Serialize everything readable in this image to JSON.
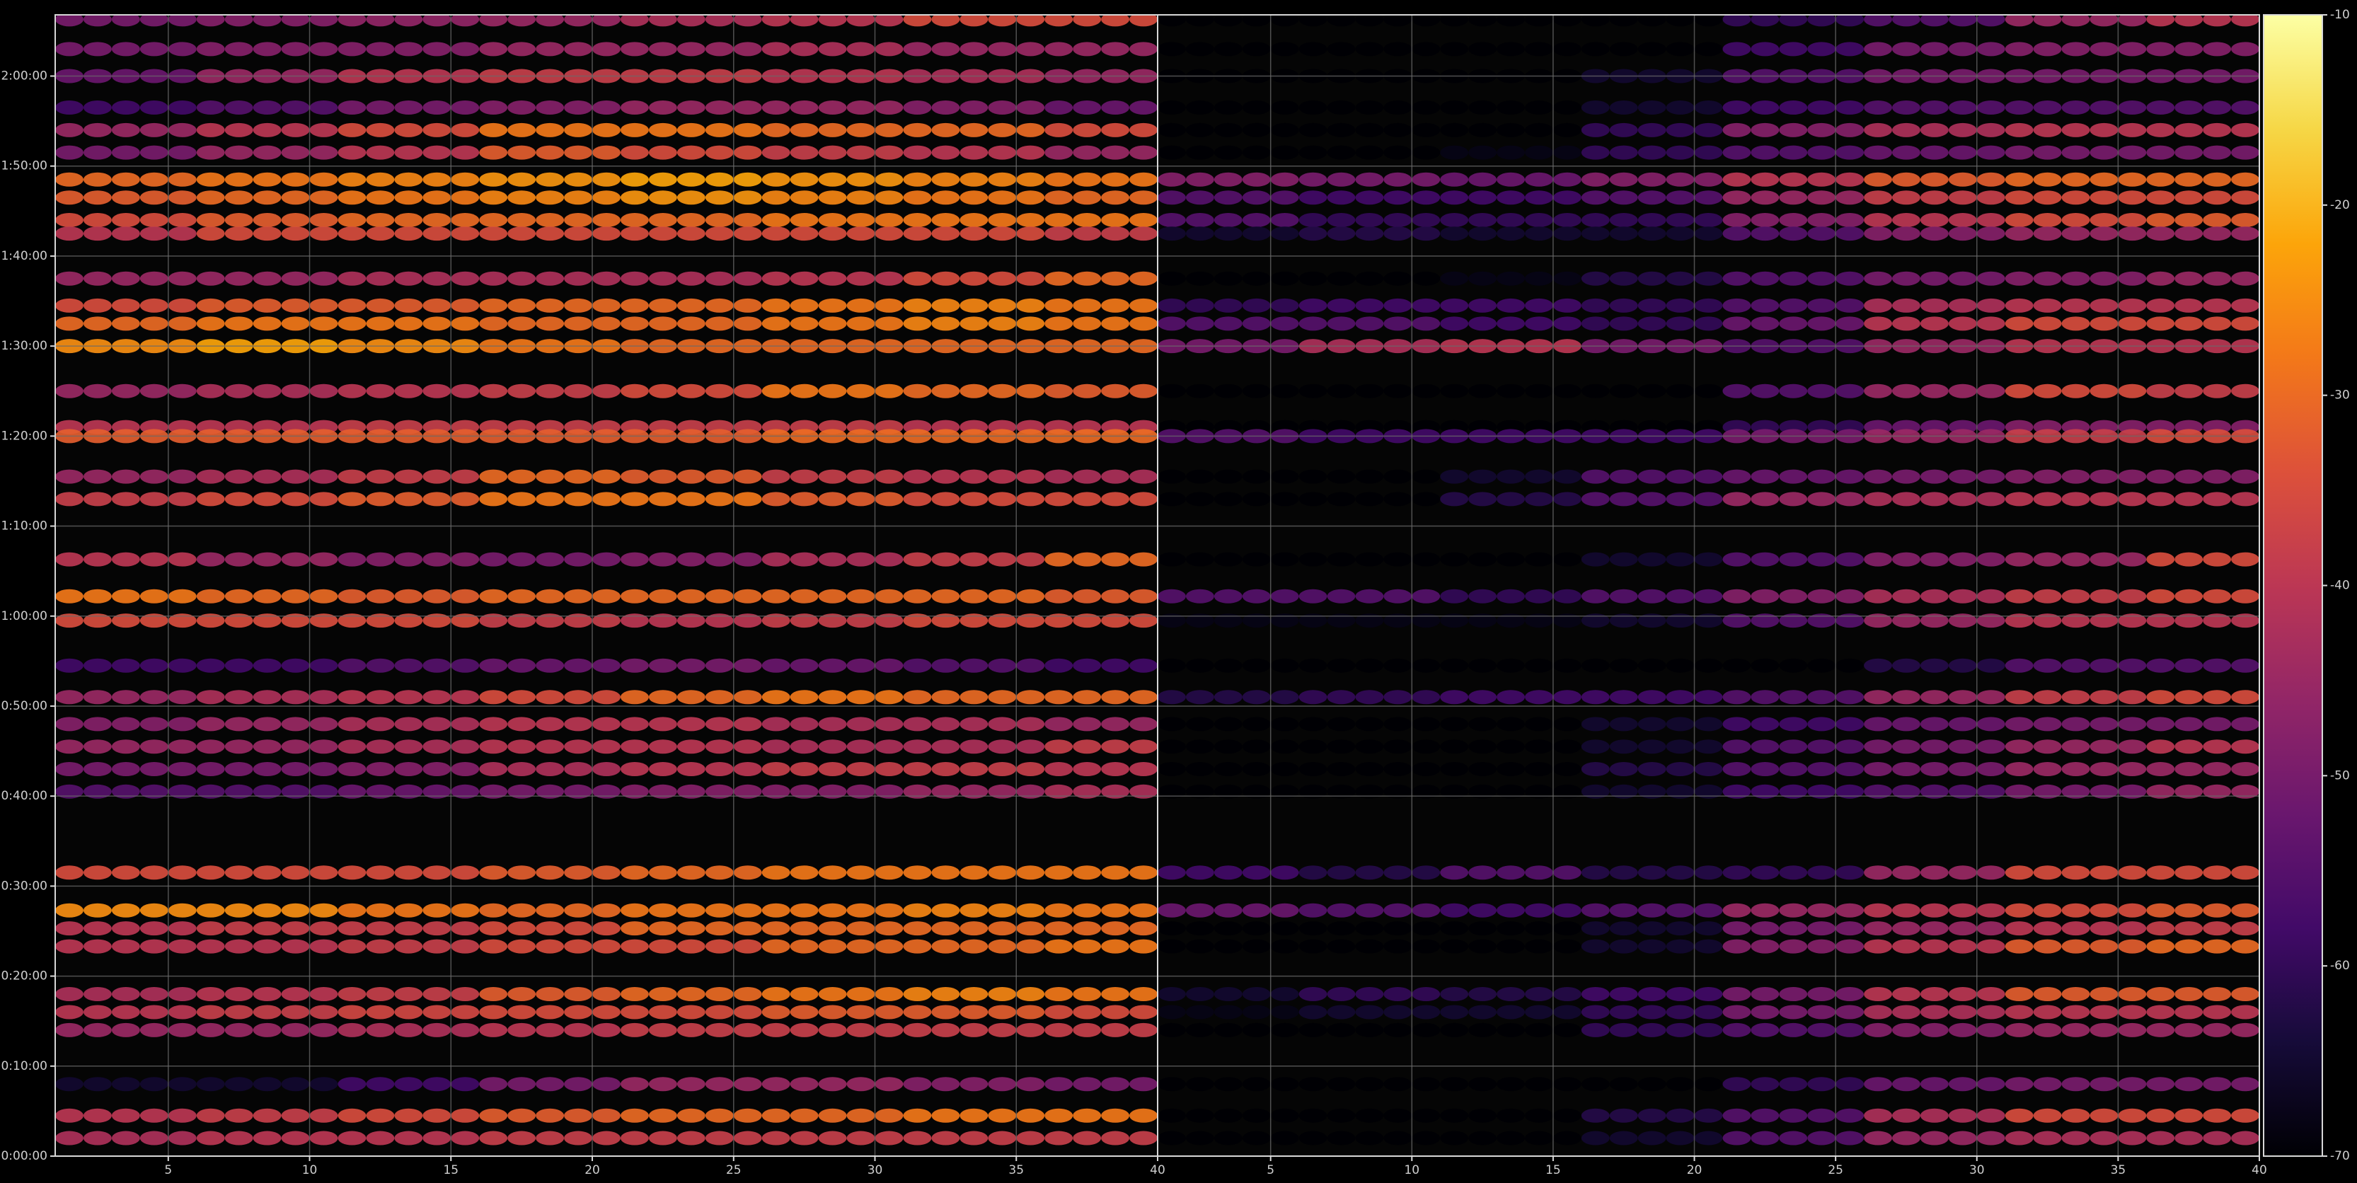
{
  "chart_data": [
    {
      "type": "heatmap",
      "xlim": [
        1,
        40
      ],
      "xticks": [
        5,
        10,
        15,
        20,
        25,
        30,
        35,
        40
      ],
      "ylim": [
        0,
        126.8
      ],
      "yticks": [
        {
          "value": 0,
          "label": "0:00:00"
        },
        {
          "value": 10,
          "label": "0:10:00"
        },
        {
          "value": 20,
          "label": "0:20:00"
        },
        {
          "value": 30,
          "label": "0:30:00"
        },
        {
          "value": 40,
          "label": "0:40:00"
        },
        {
          "value": 50,
          "label": "0:50:00"
        },
        {
          "value": 60,
          "label": "1:00:00"
        },
        {
          "value": 70,
          "label": "1:10:00"
        },
        {
          "value": 80,
          "label": "1:20:00"
        },
        {
          "value": 90,
          "label": "1:30:00"
        },
        {
          "value": 100,
          "label": "1:40:00"
        },
        {
          "value": 110,
          "label": "1:50:00"
        },
        {
          "value": 120,
          "label": "2:00:00"
        }
      ],
      "grid": true,
      "x_bins": [
        1,
        6,
        11,
        16,
        21,
        26,
        31,
        36,
        40
      ],
      "rows": [
        {
          "y": 126.3,
          "values": [
            -50,
            -48,
            -46,
            -45,
            -42,
            -40,
            -35,
            -35
          ]
        },
        {
          "y": 123,
          "values": [
            -50,
            -48,
            -48,
            -45,
            -45,
            -42,
            -45,
            -45
          ]
        },
        {
          "y": 120,
          "values": [
            -52,
            -45,
            -40,
            -38,
            -38,
            -40,
            -42,
            -45
          ]
        },
        {
          "y": 116.5,
          "values": [
            -58,
            -55,
            -50,
            -48,
            -45,
            -45,
            -48,
            -52
          ]
        },
        {
          "y": 114,
          "values": [
            -45,
            -40,
            -35,
            -28,
            -28,
            -30,
            -30,
            -35
          ]
        },
        {
          "y": 111.5,
          "values": [
            -50,
            -45,
            -40,
            -32,
            -35,
            -38,
            -40,
            -45
          ]
        },
        {
          "y": 108.5,
          "values": [
            -30,
            -28,
            -26,
            -24,
            -22,
            -24,
            -26,
            -28
          ]
        },
        {
          "y": 106.5,
          "values": [
            -32,
            -30,
            -28,
            -26,
            -24,
            -26,
            -28,
            -30
          ]
        },
        {
          "y": 104,
          "values": [
            -35,
            -32,
            -30,
            -30,
            -30,
            -28,
            -28,
            -28
          ]
        },
        {
          "y": 102.5,
          "values": [
            -40,
            -35,
            -35,
            -35,
            -35,
            -35,
            -35,
            -38
          ]
        },
        {
          "y": 97.5,
          "values": [
            -45,
            -45,
            -42,
            -42,
            -42,
            -40,
            -35,
            -30
          ]
        },
        {
          "y": 94.5,
          "values": [
            -35,
            -32,
            -32,
            -30,
            -30,
            -28,
            -26,
            -28
          ]
        },
        {
          "y": 92.5,
          "values": [
            -30,
            -28,
            -28,
            -30,
            -30,
            -28,
            -26,
            -28
          ]
        },
        {
          "y": 90,
          "values": [
            -25,
            -22,
            -25,
            -28,
            -30,
            -30,
            -30,
            -30
          ]
        },
        {
          "y": 85,
          "values": [
            -45,
            -42,
            -40,
            -38,
            -35,
            -28,
            -30,
            -32
          ]
        },
        {
          "y": 81,
          "values": [
            -40,
            -40,
            -38,
            -38,
            -38,
            -38,
            -40,
            -40
          ]
        },
        {
          "y": 80,
          "values": [
            -32,
            -32,
            -32,
            -32,
            -32,
            -30,
            -30,
            -30
          ]
        },
        {
          "y": 75.5,
          "values": [
            -45,
            -42,
            -38,
            -30,
            -32,
            -38,
            -40,
            -42
          ]
        },
        {
          "y": 73,
          "values": [
            -38,
            -35,
            -32,
            -28,
            -28,
            -32,
            -35,
            -35
          ]
        },
        {
          "y": 66.3,
          "values": [
            -40,
            -45,
            -48,
            -50,
            -48,
            -42,
            -38,
            -30
          ]
        },
        {
          "y": 62.2,
          "values": [
            -28,
            -30,
            -32,
            -30,
            -30,
            -30,
            -30,
            -32
          ]
        },
        {
          "y": 59.5,
          "values": [
            -35,
            -35,
            -35,
            -38,
            -40,
            -38,
            -35,
            -35
          ]
        },
        {
          "y": 54.5,
          "values": [
            -58,
            -58,
            -55,
            -52,
            -50,
            -52,
            -55,
            -58
          ]
        },
        {
          "y": 51,
          "values": [
            -45,
            -42,
            -40,
            -35,
            -30,
            -28,
            -30,
            -30
          ]
        },
        {
          "y": 48,
          "values": [
            -48,
            -45,
            -42,
            -40,
            -40,
            -42,
            -42,
            -45
          ]
        },
        {
          "y": 45.5,
          "values": [
            -45,
            -45,
            -42,
            -40,
            -40,
            -42,
            -42,
            -38
          ]
        },
        {
          "y": 43,
          "values": [
            -50,
            -50,
            -48,
            -42,
            -40,
            -38,
            -38,
            -40
          ]
        },
        {
          "y": 40.5,
          "values": [
            -55,
            -55,
            -52,
            -50,
            -48,
            -48,
            -45,
            -42
          ]
        },
        {
          "y": 31.5,
          "values": [
            -35,
            -35,
            -35,
            -32,
            -30,
            -28,
            -28,
            -28
          ]
        },
        {
          "y": 27.3,
          "values": [
            -25,
            -25,
            -28,
            -30,
            -28,
            -28,
            -26,
            -28
          ]
        },
        {
          "y": 25.3,
          "values": [
            -40,
            -38,
            -38,
            -35,
            -30,
            -30,
            -30,
            -30
          ]
        },
        {
          "y": 23.3,
          "values": [
            -40,
            -40,
            -38,
            -35,
            -35,
            -30,
            -30,
            -28
          ]
        },
        {
          "y": 18,
          "values": [
            -42,
            -40,
            -38,
            -32,
            -30,
            -28,
            -26,
            -28
          ]
        },
        {
          "y": 16,
          "values": [
            -40,
            -38,
            -36,
            -35,
            -35,
            -32,
            -32,
            -35
          ]
        },
        {
          "y": 14,
          "values": [
            -45,
            -45,
            -42,
            -40,
            -38,
            -38,
            -38,
            -38
          ]
        },
        {
          "y": 8,
          "values": [
            -65,
            -65,
            -58,
            -50,
            -45,
            -45,
            -48,
            -50
          ]
        },
        {
          "y": 4.5,
          "values": [
            -40,
            -38,
            -35,
            -32,
            -30,
            -30,
            -28,
            -28
          ]
        },
        {
          "y": 2,
          "values": [
            -42,
            -40,
            -40,
            -38,
            -38,
            -38,
            -38,
            -38
          ]
        }
      ]
    },
    {
      "type": "heatmap",
      "xlim": [
        1,
        40
      ],
      "xticks": [
        5,
        10,
        15,
        20,
        25,
        30,
        35,
        40
      ],
      "x_bins": [
        1,
        6,
        11,
        16,
        21,
        26,
        31,
        36,
        40
      ],
      "rows": [
        {
          "y": 126.3,
          "values": [
            -70,
            -70,
            -70,
            -70,
            -60,
            -55,
            -45,
            -40
          ]
        },
        {
          "y": 123,
          "values": [
            -70,
            -70,
            -70,
            -70,
            -58,
            -50,
            -48,
            -48
          ]
        },
        {
          "y": 120,
          "values": [
            -70,
            -70,
            -70,
            -65,
            -55,
            -50,
            -50,
            -50
          ]
        },
        {
          "y": 116.5,
          "values": [
            -70,
            -70,
            -70,
            -65,
            -58,
            -55,
            -55,
            -55
          ]
        },
        {
          "y": 114,
          "values": [
            -70,
            -70,
            -70,
            -60,
            -48,
            -42,
            -40,
            -40
          ]
        },
        {
          "y": 111.5,
          "values": [
            -70,
            -70,
            -68,
            -60,
            -55,
            -52,
            -50,
            -50
          ]
        },
        {
          "y": 108.5,
          "values": [
            -48,
            -50,
            -52,
            -48,
            -40,
            -32,
            -30,
            -30
          ]
        },
        {
          "y": 106.5,
          "values": [
            -55,
            -58,
            -58,
            -55,
            -45,
            -38,
            -35,
            -35
          ]
        },
        {
          "y": 104,
          "values": [
            -55,
            -60,
            -60,
            -60,
            -48,
            -40,
            -35,
            -32
          ]
        },
        {
          "y": 102.5,
          "values": [
            -65,
            -62,
            -65,
            -65,
            -55,
            -48,
            -45,
            -45
          ]
        },
        {
          "y": 97.5,
          "values": [
            -70,
            -70,
            -68,
            -62,
            -55,
            -50,
            -48,
            -45
          ]
        },
        {
          "y": 94.5,
          "values": [
            -60,
            -58,
            -58,
            -60,
            -55,
            -42,
            -40,
            -40
          ]
        },
        {
          "y": 92.5,
          "values": [
            -55,
            -55,
            -58,
            -60,
            -52,
            -40,
            -35,
            -35
          ]
        },
        {
          "y": 90,
          "values": [
            -50,
            -42,
            -40,
            -50,
            -55,
            -45,
            -40,
            -40
          ]
        },
        {
          "y": 85,
          "values": [
            -70,
            -70,
            -70,
            -70,
            -55,
            -45,
            -35,
            -38
          ]
        },
        {
          "y": 81,
          "values": [
            -70,
            -70,
            -70,
            -70,
            -60,
            -52,
            -48,
            -48
          ]
        },
        {
          "y": 80,
          "values": [
            -55,
            -58,
            -58,
            -58,
            -50,
            -45,
            -38,
            -35
          ]
        },
        {
          "y": 75.5,
          "values": [
            -70,
            -70,
            -65,
            -55,
            -52,
            -50,
            -48,
            -48
          ]
        },
        {
          "y": 73,
          "values": [
            -70,
            -70,
            -62,
            -55,
            -45,
            -42,
            -40,
            -40
          ]
        },
        {
          "y": 66.3,
          "values": [
            -70,
            -70,
            -70,
            -65,
            -55,
            -48,
            -45,
            -35
          ]
        },
        {
          "y": 62.2,
          "values": [
            -55,
            -55,
            -60,
            -55,
            -48,
            -42,
            -38,
            -35
          ]
        },
        {
          "y": 59.5,
          "values": [
            -68,
            -68,
            -68,
            -65,
            -55,
            -45,
            -40,
            -40
          ]
        },
        {
          "y": 54.5,
          "values": [
            -70,
            -70,
            -70,
            -70,
            -70,
            -62,
            -55,
            -55
          ]
        },
        {
          "y": 51,
          "values": [
            -62,
            -60,
            -58,
            -58,
            -55,
            -45,
            -38,
            -35
          ]
        },
        {
          "y": 48,
          "values": [
            -70,
            -70,
            -70,
            -65,
            -58,
            -52,
            -50,
            -50
          ]
        },
        {
          "y": 45.5,
          "values": [
            -70,
            -70,
            -70,
            -65,
            -55,
            -50,
            -45,
            -40
          ]
        },
        {
          "y": 43,
          "values": [
            -70,
            -70,
            -70,
            -62,
            -55,
            -50,
            -45,
            -45
          ]
        },
        {
          "y": 40.5,
          "values": [
            -70,
            -70,
            -70,
            -65,
            -58,
            -55,
            -50,
            -45
          ]
        },
        {
          "y": 31.5,
          "values": [
            -58,
            -62,
            -55,
            -62,
            -60,
            -45,
            -35,
            -35
          ]
        },
        {
          "y": 27.3,
          "values": [
            -52,
            -55,
            -58,
            -55,
            -45,
            -40,
            -35,
            -32
          ]
        },
        {
          "y": 25.3,
          "values": [
            -70,
            -70,
            -70,
            -65,
            -50,
            -45,
            -40,
            -38
          ]
        },
        {
          "y": 23.3,
          "values": [
            -70,
            -70,
            -70,
            -65,
            -48,
            -40,
            -32,
            -30
          ]
        },
        {
          "y": 18,
          "values": [
            -65,
            -60,
            -62,
            -58,
            -50,
            -40,
            -32,
            -32
          ]
        },
        {
          "y": 16,
          "values": [
            -68,
            -65,
            -65,
            -60,
            -50,
            -42,
            -40,
            -40
          ]
        },
        {
          "y": 14,
          "values": [
            -70,
            -70,
            -70,
            -60,
            -55,
            -48,
            -45,
            -45
          ]
        },
        {
          "y": 8,
          "values": [
            -70,
            -70,
            -70,
            -70,
            -60,
            -52,
            -50,
            -50
          ]
        },
        {
          "y": 4.5,
          "values": [
            -70,
            -70,
            -70,
            -62,
            -55,
            -42,
            -35,
            -35
          ]
        },
        {
          "y": 2,
          "values": [
            -70,
            -70,
            -70,
            -65,
            -55,
            -45,
            -42,
            -42
          ]
        }
      ]
    }
  ],
  "colorbar": {
    "lim": [
      -70,
      -10
    ],
    "ticks": [
      -70,
      -60,
      -50,
      -40,
      -30,
      -20,
      -10
    ]
  }
}
